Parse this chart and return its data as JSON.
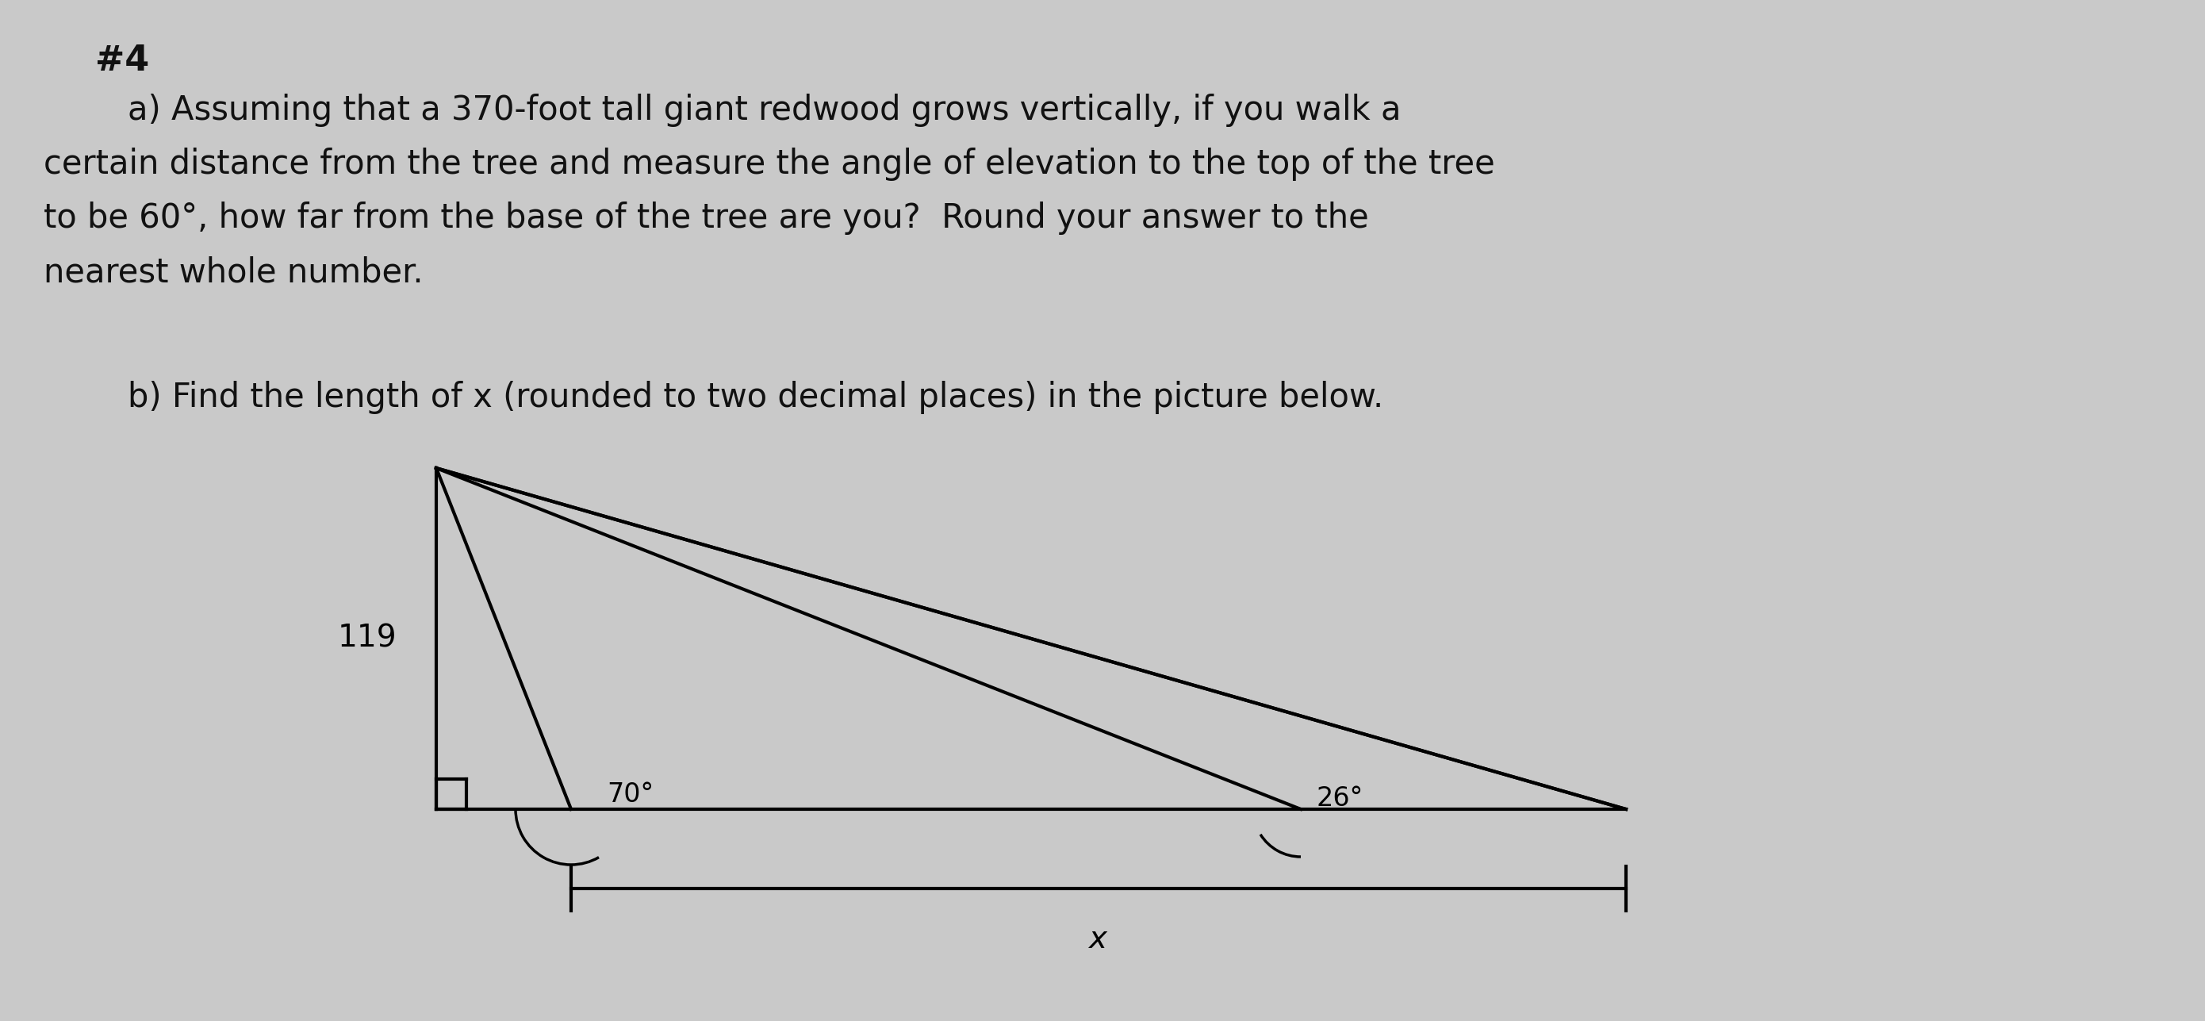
{
  "bg_color": "#c9c9c9",
  "title_text": "#4",
  "title_fontsize": 32,
  "title_bold": true,
  "problem_a_lines": [
    "        a) Assuming that a 370-foot tall giant redwood grows vertically, if you walk a",
    "certain distance from the tree and measure the angle of elevation to the top of the tree",
    "to be 60°, how far from the base of the tree are you?  Round your answer to the",
    "nearest whole number."
  ],
  "problem_b_text": "        b) Find the length of x (rounded to two decimal places) in the picture below.",
  "text_color": "#111111",
  "text_fontsize": 30,
  "diagram": {
    "angle_70_label": "70°",
    "angle_26_label": "26°",
    "side_label": "119",
    "x_label": "x"
  }
}
